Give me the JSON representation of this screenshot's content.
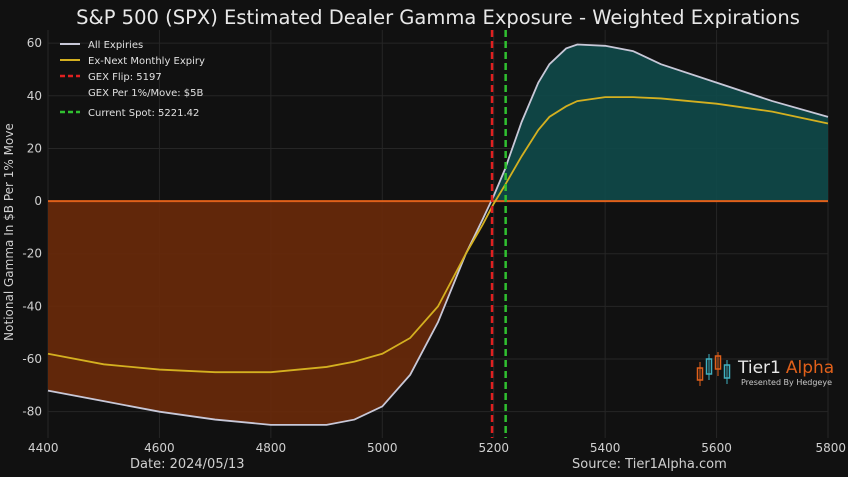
{
  "chart_data": {
    "type": "area",
    "title": "S&P 500 (SPX) Estimated Dealer Gamma Exposure - Weighted Expirations",
    "xlabel": "",
    "ylabel": "Notional Gamma In $B Per 1% Move",
    "xlim": [
      4400,
      5800
    ],
    "ylim": [
      -90,
      65
    ],
    "x_ticks": [
      4400,
      4600,
      4800,
      5000,
      5200,
      5400,
      5600,
      5800
    ],
    "y_ticks": [
      -80,
      -60,
      -40,
      -20,
      0,
      20,
      40,
      60
    ],
    "grid": true,
    "legend_position": "top-left",
    "x": [
      4400,
      4500,
      4600,
      4700,
      4800,
      4900,
      4950,
      5000,
      5050,
      5100,
      5150,
      5180,
      5200,
      5220,
      5250,
      5280,
      5300,
      5330,
      5350,
      5400,
      5450,
      5500,
      5600,
      5700,
      5800
    ],
    "series": [
      {
        "name": "All Expiries",
        "color": "#c8c8d8",
        "values": [
          -72,
          -76,
          -80,
          -83,
          -85,
          -85,
          -83,
          -78,
          -66,
          -46,
          -20,
          -7,
          2,
          12,
          30,
          45,
          52,
          58,
          59.5,
          59,
          57,
          52,
          45,
          38,
          32
        ]
      },
      {
        "name": "Ex-Next Monthly Expiry",
        "color": "#d4b020",
        "values": [
          -58,
          -62,
          -64,
          -65,
          -65,
          -63,
          -61,
          -58,
          -52,
          -40,
          -20,
          -9,
          -1,
          6,
          17,
          27,
          32,
          36,
          38,
          39.5,
          39.5,
          39,
          37,
          34,
          29.5
        ]
      }
    ],
    "annotations": [
      {
        "type": "vline",
        "label": "GEX Flip: 5197",
        "x": 5197,
        "color": "#e02020"
      },
      {
        "type": "text",
        "label": "GEX Per 1%/Move: $5B"
      },
      {
        "type": "vline",
        "label": "Current Spot: 5221.42",
        "x": 5221.42,
        "color": "#30c030"
      }
    ],
    "fill_colors": {
      "negative": "#6a2a0a",
      "positive": "#0f4a4a",
      "zero_line": "#e0601a"
    },
    "footer_left": "Date: 2024/05/13",
    "footer_right": "Source: Tier1Alpha.com",
    "brand": {
      "name_part1": "Tier1",
      "name_part2": "Alpha",
      "tagline": "Presented By Hedgeye",
      "accent": "#e0601a"
    }
  }
}
